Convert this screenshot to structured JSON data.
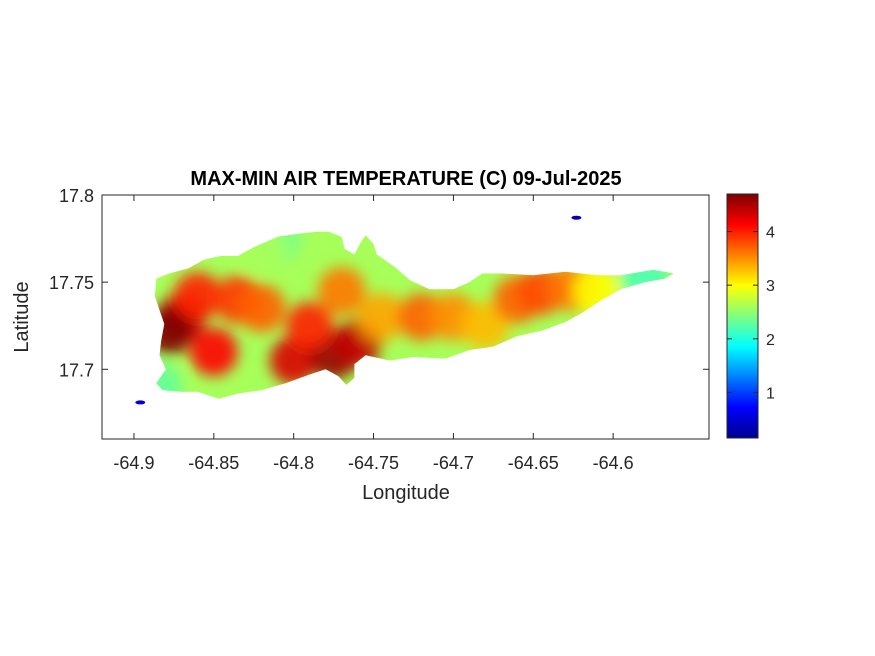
{
  "chart_data": {
    "type": "heatmap",
    "title": "MAX-MIN AIR TEMPERATURE (C) 09-Jul-2025",
    "xlabel": "Longitude",
    "ylabel": "Latitude",
    "xlim": [
      -64.92,
      -64.54
    ],
    "ylim": [
      17.66,
      17.8
    ],
    "x_ticks": [
      -64.9,
      -64.85,
      -64.8,
      -64.75,
      -64.7,
      -64.65,
      -64.6
    ],
    "x_tick_labels": [
      "-64.9",
      "-64.85",
      "-64.8",
      "-64.75",
      "-64.7",
      "-64.65",
      "-64.6"
    ],
    "y_ticks": [
      17.7,
      17.75,
      17.8
    ],
    "y_tick_labels": [
      "17.7",
      "17.75",
      "17.8"
    ],
    "colorbar": {
      "colormap": "jet",
      "range": [
        0.15,
        4.7
      ],
      "ticks": [
        1,
        2,
        3,
        4
      ],
      "tick_labels": [
        "1",
        "2",
        "3",
        "4"
      ]
    },
    "grid": false,
    "outline": [
      [
        -64.882,
        17.688
      ],
      [
        -64.87,
        17.687
      ],
      [
        -64.86,
        17.687
      ],
      [
        -64.847,
        17.683
      ],
      [
        -64.835,
        17.686
      ],
      [
        -64.82,
        17.688
      ],
      [
        -64.805,
        17.692
      ],
      [
        -64.79,
        17.697
      ],
      [
        -64.78,
        17.7
      ],
      [
        -64.772,
        17.696
      ],
      [
        -64.767,
        17.691
      ],
      [
        -64.762,
        17.695
      ],
      [
        -64.762,
        17.703
      ],
      [
        -64.755,
        17.708
      ],
      [
        -64.74,
        17.705
      ],
      [
        -64.725,
        17.707
      ],
      [
        -64.705,
        17.706
      ],
      [
        -64.69,
        17.711
      ],
      [
        -64.675,
        17.713
      ],
      [
        -64.66,
        17.719
      ],
      [
        -64.645,
        17.722
      ],
      [
        -64.63,
        17.727
      ],
      [
        -64.62,
        17.732
      ],
      [
        -64.607,
        17.74
      ],
      [
        -64.595,
        17.746
      ],
      [
        -64.58,
        17.75
      ],
      [
        -64.568,
        17.752
      ],
      [
        -64.562,
        17.755
      ],
      [
        -64.575,
        17.757
      ],
      [
        -64.595,
        17.754
      ],
      [
        -64.61,
        17.754
      ],
      [
        -64.63,
        17.756
      ],
      [
        -64.65,
        17.754
      ],
      [
        -64.67,
        17.755
      ],
      [
        -64.682,
        17.755
      ],
      [
        -64.69,
        17.75
      ],
      [
        -64.7,
        17.746
      ],
      [
        -64.715,
        17.746
      ],
      [
        -64.727,
        17.751
      ],
      [
        -64.737,
        17.759
      ],
      [
        -64.748,
        17.766
      ],
      [
        -64.75,
        17.772
      ],
      [
        -64.755,
        17.777
      ],
      [
        -64.758,
        17.773
      ],
      [
        -64.762,
        17.766
      ],
      [
        -64.768,
        17.769
      ],
      [
        -64.77,
        17.776
      ],
      [
        -64.778,
        17.779
      ],
      [
        -64.785,
        17.779
      ],
      [
        -64.795,
        17.778
      ],
      [
        -64.81,
        17.776
      ],
      [
        -64.825,
        17.77
      ],
      [
        -64.835,
        17.765
      ],
      [
        -64.846,
        17.765
      ],
      [
        -64.856,
        17.763
      ],
      [
        -64.866,
        17.758
      ],
      [
        -64.878,
        17.755
      ],
      [
        -64.886,
        17.752
      ],
      [
        -64.887,
        17.742
      ],
      [
        -64.884,
        17.734
      ],
      [
        -64.881,
        17.726
      ],
      [
        -64.883,
        17.716
      ],
      [
        -64.884,
        17.708
      ],
      [
        -64.88,
        17.7
      ],
      [
        -64.886,
        17.692
      ]
    ],
    "hotspots": [
      {
        "lon": -64.87,
        "lat": 17.73,
        "value": 4.4
      },
      {
        "lon": -64.878,
        "lat": 17.722,
        "value": 4.7
      },
      {
        "lon": -64.86,
        "lat": 17.742,
        "value": 4.0
      },
      {
        "lon": -64.835,
        "lat": 17.74,
        "value": 3.9
      },
      {
        "lon": -64.82,
        "lat": 17.735,
        "value": 3.7
      },
      {
        "lon": -64.85,
        "lat": 17.71,
        "value": 4.1
      },
      {
        "lon": -64.8,
        "lat": 17.705,
        "value": 4.3
      },
      {
        "lon": -64.775,
        "lat": 17.708,
        "value": 4.6
      },
      {
        "lon": -64.76,
        "lat": 17.715,
        "value": 4.4
      },
      {
        "lon": -64.79,
        "lat": 17.725,
        "value": 4.0
      },
      {
        "lon": -64.77,
        "lat": 17.745,
        "value": 3.6
      },
      {
        "lon": -64.745,
        "lat": 17.73,
        "value": 3.4
      },
      {
        "lon": -64.72,
        "lat": 17.73,
        "value": 3.7
      },
      {
        "lon": -64.7,
        "lat": 17.73,
        "value": 3.5
      },
      {
        "lon": -64.68,
        "lat": 17.725,
        "value": 3.3
      },
      {
        "lon": -64.66,
        "lat": 17.74,
        "value": 3.7
      },
      {
        "lon": -64.645,
        "lat": 17.745,
        "value": 3.8
      },
      {
        "lon": -64.625,
        "lat": 17.747,
        "value": 3.6
      },
      {
        "lon": -64.61,
        "lat": 17.745,
        "value": 3.0
      },
      {
        "lon": -64.58,
        "lat": 17.752,
        "value": 2.2
      },
      {
        "lon": -64.885,
        "lat": 17.69,
        "value": 2.3
      },
      {
        "lon": -64.81,
        "lat": 17.775,
        "value": 2.4
      },
      {
        "lon": -64.82,
        "lat": 17.769,
        "value": 2.6
      }
    ],
    "small_features": [
      {
        "lon": -64.896,
        "lat": 17.681,
        "value": 0.5
      },
      {
        "lon": -64.623,
        "lat": 17.787,
        "value": 0.3
      }
    ]
  }
}
